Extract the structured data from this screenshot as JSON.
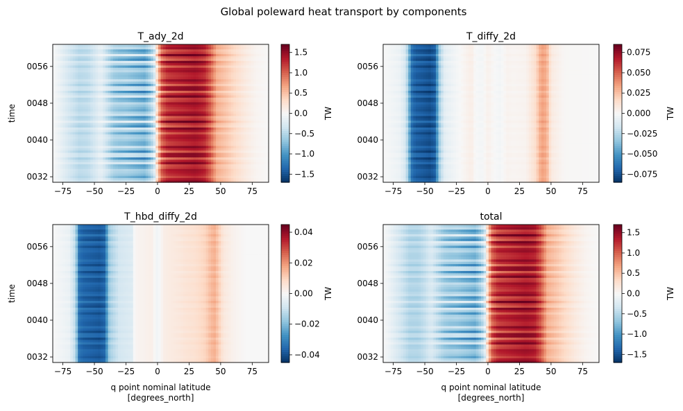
{
  "suptitle": "Global poleward heat transport by components",
  "colormap": {
    "name": "RdBu_r",
    "stops": [
      "#053061",
      "#2166ac",
      "#4393c3",
      "#92c5de",
      "#d1e5f0",
      "#f7f7f7",
      "#fddbc7",
      "#f4a582",
      "#d6604d",
      "#b2182b",
      "#67001f"
    ]
  },
  "chart_data": [
    {
      "type": "heatmap",
      "title": "T_ady_2d",
      "xlabel": "",
      "ylabel": "time",
      "cbar_label": "TW",
      "xlim": [
        -83,
        88
      ],
      "ylim": [
        30.8,
        60.8
      ],
      "vmin": -1.7,
      "vmax": 1.7,
      "xticks": [
        -75,
        -50,
        -25,
        0,
        25,
        50,
        75
      ],
      "xtick_labels": [
        "−75",
        "−50",
        "−25",
        "0",
        "25",
        "50",
        "75"
      ],
      "yticks": [
        32,
        40,
        48,
        56
      ],
      "ytick_labels": [
        "0032",
        "0040",
        "0048",
        "0056"
      ],
      "cbar_ticks": [
        -1.5,
        -1.0,
        -0.5,
        0.0,
        0.5,
        1.0,
        1.5
      ],
      "cbar_tick_labels": [
        "−1.5",
        "−1.0",
        "−0.5",
        "0.0",
        "0.5",
        "1.0",
        "1.5"
      ],
      "profile": {
        "lat": [
          -83,
          -78,
          -70,
          -62,
          -55,
          -50,
          -45,
          -40,
          -35,
          -30,
          -25,
          -20,
          -15,
          -10,
          -5,
          -2,
          0,
          3,
          8,
          15,
          22,
          30,
          37,
          42,
          47,
          55,
          62,
          70,
          78,
          88
        ],
        "mean": [
          0.0,
          -0.1,
          -0.3,
          -0.45,
          -0.42,
          -0.3,
          -0.15,
          -0.35,
          -0.55,
          -0.6,
          -0.6,
          -0.65,
          -0.7,
          -0.75,
          -0.5,
          -0.2,
          0.4,
          1.0,
          1.25,
          1.3,
          1.35,
          1.4,
          1.3,
          1.0,
          0.6,
          0.45,
          0.3,
          0.15,
          0.05,
          0.0
        ],
        "var": [
          0.0,
          0.05,
          0.1,
          0.12,
          0.12,
          0.1,
          0.12,
          0.25,
          0.35,
          0.4,
          0.45,
          0.5,
          0.5,
          0.5,
          0.45,
          0.35,
          0.35,
          0.4,
          0.4,
          0.35,
          0.35,
          0.3,
          0.3,
          0.25,
          0.15,
          0.1,
          0.08,
          0.05,
          0.02,
          0.0
        ]
      }
    },
    {
      "type": "heatmap",
      "title": "T_diffy_2d",
      "xlabel": "",
      "ylabel": "",
      "cbar_label": "TW",
      "xlim": [
        -83,
        88
      ],
      "ylim": [
        30.8,
        60.8
      ],
      "vmin": -0.085,
      "vmax": 0.085,
      "xticks": [
        -75,
        -50,
        -25,
        0,
        25,
        50,
        75
      ],
      "xtick_labels": [
        "−75",
        "−50",
        "−25",
        "0",
        "25",
        "50",
        "75"
      ],
      "yticks": [
        32,
        40,
        48,
        56
      ],
      "ytick_labels": [
        "0032",
        "0040",
        "0048",
        "0056"
      ],
      "cbar_ticks": [
        -0.075,
        -0.05,
        -0.025,
        0.0,
        0.025,
        0.05,
        0.075
      ],
      "cbar_tick_labels": [
        "−0.075",
        "−0.050",
        "−0.025",
        "0.000",
        "0.025",
        "0.050",
        "0.075"
      ],
      "profile": {
        "lat": [
          -83,
          -70,
          -65,
          -60,
          -57,
          -52,
          -46,
          -42,
          -38,
          -34,
          -25,
          -16,
          -13,
          -10,
          -5,
          0,
          5,
          10,
          15,
          20,
          30,
          38,
          41,
          44,
          47,
          50,
          60,
          88
        ],
        "mean": [
          0.0,
          -0.005,
          -0.015,
          -0.065,
          -0.07,
          -0.072,
          -0.075,
          -0.07,
          -0.025,
          -0.008,
          -0.002,
          0.004,
          0.006,
          0.0,
          -0.002,
          0.004,
          0.0,
          -0.002,
          0.003,
          0.002,
          0.003,
          0.015,
          0.03,
          0.035,
          0.028,
          0.008,
          0.001,
          0.0
        ],
        "var": [
          0.0,
          0.002,
          0.004,
          0.008,
          0.008,
          0.008,
          0.008,
          0.008,
          0.006,
          0.003,
          0.001,
          0.001,
          0.001,
          0.001,
          0.001,
          0.001,
          0.001,
          0.001,
          0.001,
          0.001,
          0.001,
          0.002,
          0.004,
          0.004,
          0.004,
          0.002,
          0.0,
          0.0
        ]
      }
    },
    {
      "type": "heatmap",
      "title": "T_hbd_diffy_2d",
      "xlabel": "q point nominal latitude\n[degrees_north]",
      "ylabel": "time",
      "cbar_label": "TW",
      "xlim": [
        -83,
        88
      ],
      "ylim": [
        30.8,
        60.8
      ],
      "vmin": -0.045,
      "vmax": 0.045,
      "xticks": [
        -75,
        -50,
        -25,
        0,
        25,
        50,
        75
      ],
      "xtick_labels": [
        "−75",
        "−50",
        "−25",
        "0",
        "25",
        "50",
        "75"
      ],
      "yticks": [
        32,
        40,
        48,
        56
      ],
      "ytick_labels": [
        "0032",
        "0040",
        "0048",
        "0056"
      ],
      "cbar_ticks": [
        -0.04,
        -0.02,
        0.0,
        0.02,
        0.04
      ],
      "cbar_tick_labels": [
        "−0.04",
        "−0.02",
        "0.00",
        "0.02",
        "0.04"
      ],
      "profile": {
        "lat": [
          -83,
          -70,
          -65,
          -62,
          -58,
          -52,
          -46,
          -42,
          -38,
          -30,
          -20,
          -18,
          -10,
          -5,
          0,
          5,
          10,
          18,
          22,
          30,
          38,
          42,
          45,
          48,
          52,
          60,
          70,
          88
        ],
        "mean": [
          0.0,
          -0.003,
          -0.012,
          -0.034,
          -0.036,
          -0.037,
          -0.038,
          -0.036,
          -0.015,
          -0.008,
          -0.006,
          0.001,
          0.002,
          0.003,
          -0.002,
          0.003,
          0.004,
          0.005,
          0.006,
          0.007,
          0.01,
          0.014,
          0.016,
          0.012,
          0.005,
          0.002,
          0.0,
          0.0
        ],
        "var": [
          0.0,
          0.001,
          0.002,
          0.004,
          0.004,
          0.004,
          0.004,
          0.004,
          0.003,
          0.001,
          0.001,
          0.0,
          0.0,
          0.0,
          0.0,
          0.0,
          0.0,
          0.001,
          0.001,
          0.001,
          0.001,
          0.002,
          0.002,
          0.002,
          0.001,
          0.0,
          0.0,
          0.0
        ]
      }
    },
    {
      "type": "heatmap",
      "title": "total",
      "xlabel": "q point nominal latitude\n[degrees_north]",
      "ylabel": "",
      "cbar_label": "TW",
      "xlim": [
        -83,
        88
      ],
      "ylim": [
        30.8,
        60.8
      ],
      "vmin": -1.7,
      "vmax": 1.7,
      "xticks": [
        -75,
        -50,
        -25,
        0,
        25,
        50,
        75
      ],
      "xtick_labels": [
        "−75",
        "−50",
        "−25",
        "0",
        "25",
        "50",
        "75"
      ],
      "yticks": [
        32,
        40,
        48,
        56
      ],
      "ytick_labels": [
        "0032",
        "0040",
        "0048",
        "0056"
      ],
      "cbar_ticks": [
        -1.5,
        -1.0,
        -0.5,
        0.0,
        0.5,
        1.0,
        1.5
      ],
      "cbar_tick_labels": [
        "−1.5",
        "−1.0",
        "−0.5",
        "0.0",
        "0.5",
        "1.0",
        "1.5"
      ],
      "profile": {
        "lat": [
          -83,
          -78,
          -70,
          -62,
          -55,
          -50,
          -45,
          -40,
          -35,
          -30,
          -25,
          -20,
          -15,
          -10,
          -5,
          -2,
          0,
          3,
          8,
          15,
          22,
          30,
          37,
          42,
          47,
          55,
          62,
          70,
          78,
          88
        ],
        "mean": [
          0.0,
          -0.1,
          -0.3,
          -0.5,
          -0.5,
          -0.4,
          -0.25,
          -0.4,
          -0.55,
          -0.6,
          -0.6,
          -0.65,
          -0.7,
          -0.75,
          -0.5,
          -0.2,
          0.4,
          1.0,
          1.25,
          1.3,
          1.35,
          1.4,
          1.35,
          1.05,
          0.6,
          0.45,
          0.3,
          0.15,
          0.05,
          0.0
        ],
        "var": [
          0.0,
          0.05,
          0.1,
          0.12,
          0.12,
          0.1,
          0.12,
          0.25,
          0.35,
          0.4,
          0.45,
          0.5,
          0.5,
          0.5,
          0.45,
          0.35,
          0.35,
          0.4,
          0.4,
          0.35,
          0.35,
          0.3,
          0.3,
          0.25,
          0.15,
          0.1,
          0.08,
          0.05,
          0.02,
          0.0
        ]
      }
    }
  ]
}
